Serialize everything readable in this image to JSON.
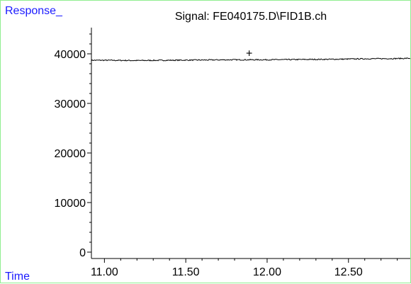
{
  "chart_data": {
    "type": "line",
    "title": "Signal: FE040175.D\\FID1B.ch",
    "ylabel": "Response_",
    "xlabel": "Time",
    "xlim": [
      10.92,
      12.88
    ],
    "ylim": [
      0,
      45000
    ],
    "x_ticks": [
      11.0,
      11.5,
      12.0,
      12.5
    ],
    "x_tick_labels": [
      "11.00",
      "11.50",
      "12.00",
      "12.50"
    ],
    "y_ticks": [
      0,
      10000,
      20000,
      30000,
      40000
    ],
    "y_tick_labels": [
      "0",
      "10000",
      "20000",
      "30000",
      "40000"
    ],
    "grid": false,
    "series": [
      {
        "x": [
          10.92,
          11.0,
          11.2,
          11.4,
          11.6,
          11.8,
          12.0,
          12.2,
          12.4,
          12.6,
          12.8,
          12.88
        ],
        "values": [
          38700,
          38700,
          38650,
          38700,
          38750,
          38800,
          38800,
          38850,
          38900,
          39000,
          39050,
          39100
        ],
        "color": "#000000"
      }
    ],
    "marker": {
      "x": 11.89,
      "y": 40100,
      "symbol": "+"
    }
  }
}
